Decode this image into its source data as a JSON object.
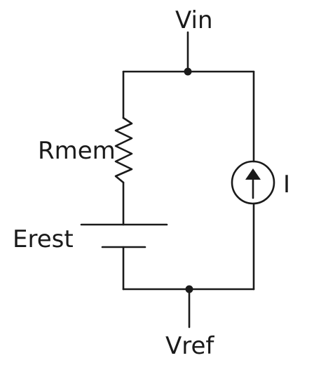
{
  "labels": {
    "vin": "Vin",
    "vref": "Vref",
    "rmem": "Rmem",
    "erest": "Erest",
    "current": "I"
  },
  "colors": {
    "ink": "#1a1a1a",
    "background": "#ffffff"
  },
  "symbols": {
    "resistor": "zigzag-resistor",
    "battery": "battery-cell",
    "current_source": "circle-arrow-up-current-source",
    "junction": "filled-dot"
  }
}
